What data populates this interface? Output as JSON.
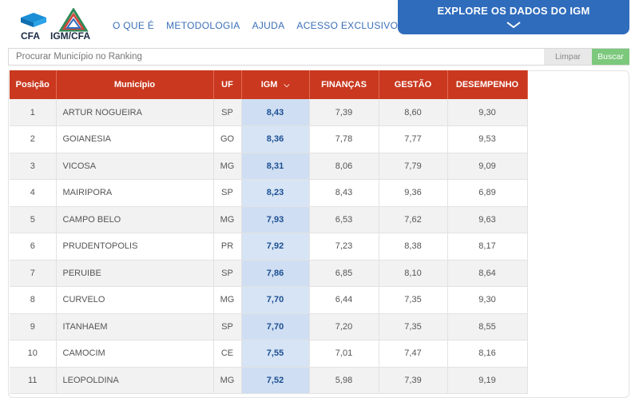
{
  "header": {
    "logo_cfa_text": "CFA",
    "logo_igm_text": "IGM/CFA",
    "nav": [
      "O QUE É",
      "METODOLOGIA",
      "AJUDA",
      "ACESSO EXCLUSIVO"
    ],
    "explore_label": "EXPLORE OS DADOS DO IGM"
  },
  "search": {
    "placeholder": "Procurar Município no Ranking",
    "clear_label": "Limpar",
    "search_label": "Buscar"
  },
  "table": {
    "columns": [
      "Posição",
      "Município",
      "UF",
      "IGM",
      "FINANÇAS",
      "GESTÃO",
      "DESEMPENHO"
    ],
    "rows": [
      [
        "1",
        "ARTUR NOGUEIRA",
        "SP",
        "8,43",
        "7,39",
        "8,60",
        "9,30"
      ],
      [
        "2",
        "GOIANESIA",
        "GO",
        "8,36",
        "7,78",
        "7,77",
        "9,53"
      ],
      [
        "3",
        "VICOSA",
        "MG",
        "8,31",
        "8,06",
        "7,79",
        "9,09"
      ],
      [
        "4",
        "MAIRIPORA",
        "SP",
        "8,23",
        "8,43",
        "9,36",
        "6,89"
      ],
      [
        "5",
        "CAMPO BELO",
        "MG",
        "7,93",
        "6,53",
        "7,62",
        "9,63"
      ],
      [
        "6",
        "PRUDENTOPOLIS",
        "PR",
        "7,92",
        "7,23",
        "8,38",
        "8,17"
      ],
      [
        "7",
        "PERUIBE",
        "SP",
        "7,86",
        "6,85",
        "8,10",
        "8,64"
      ],
      [
        "8",
        "CURVELO",
        "MG",
        "7,70",
        "6,44",
        "7,35",
        "9,30"
      ],
      [
        "9",
        "ITANHAEM",
        "SP",
        "7,70",
        "7,20",
        "7,35",
        "8,55"
      ],
      [
        "10",
        "CAMOCIM",
        "CE",
        "7,55",
        "7,01",
        "7,47",
        "8,16"
      ],
      [
        "11",
        "LEOPOLDINA",
        "MG",
        "7,52",
        "5,98",
        "7,39",
        "9,19"
      ]
    ]
  }
}
